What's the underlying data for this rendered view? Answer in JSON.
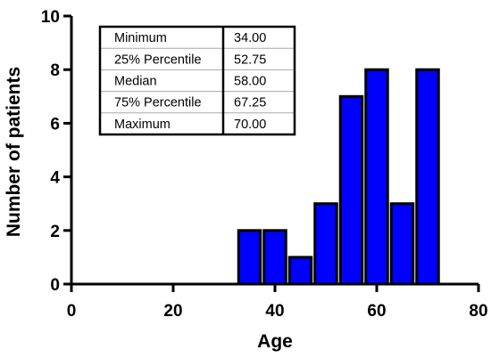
{
  "chart_data": {
    "type": "bar",
    "xlabel": "Age",
    "ylabel": "Number of patients",
    "xlim": [
      0,
      80
    ],
    "ylim": [
      0,
      10
    ],
    "x_ticks": [
      0,
      20,
      40,
      60,
      80
    ],
    "y_ticks": [
      0,
      2,
      4,
      6,
      8,
      10
    ],
    "bar_color": "#0000ff",
    "bin_width": 5,
    "x": [
      35,
      40,
      45,
      50,
      55,
      60,
      65,
      70
    ],
    "values": [
      2,
      2,
      1,
      3,
      7,
      8,
      3,
      8
    ],
    "grid": false,
    "stats_table": [
      {
        "label": "Minimum",
        "value": "34.00"
      },
      {
        "label": "25% Percentile",
        "value": "52.75"
      },
      {
        "label": "Median",
        "value": "58.00"
      },
      {
        "label": "75% Percentile",
        "value": "67.25"
      },
      {
        "label": "Maximum",
        "value": "70.00"
      }
    ],
    "stats_table_placement": "top-left"
  }
}
